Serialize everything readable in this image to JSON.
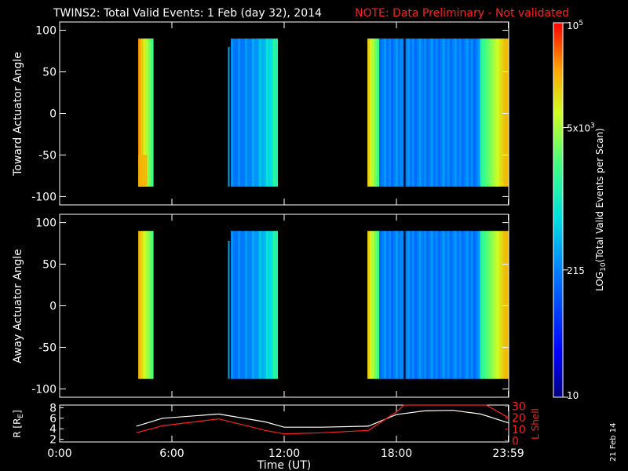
{
  "title": {
    "main": "TWINS2: Total Valid Events:  1 Feb (day  32), 2014",
    "note": "NOTE: Data Preliminary - Not validated",
    "note_color": "#ff2020"
  },
  "date_stamp": "21 Feb 14",
  "chart_data": [
    {
      "type": "heatmap",
      "panel": "toward",
      "ylabel": "Toward Actuator Angle",
      "ylim": [
        -110,
        110
      ],
      "yticks": [
        "100",
        "50",
        "0",
        "-50",
        "-100"
      ],
      "yvals": [
        100,
        50,
        0,
        -50,
        -100
      ],
      "xlim": [
        0,
        24
      ],
      "angle_range": [
        -88,
        90
      ],
      "blocks": [
        {
          "start_h": 4.2,
          "end_h": 5.0,
          "level": 0.68,
          "edge_level": 0.88
        },
        {
          "start_h": 9.15,
          "end_h": 11.65,
          "level": 0.32,
          "edge_level": 0.55
        },
        {
          "start_h": 16.45,
          "end_h": 23.98,
          "level": 0.3,
          "edge_level": 0.85
        }
      ]
    },
    {
      "type": "heatmap",
      "panel": "away",
      "ylabel": "Away Actuator Angle",
      "ylim": [
        -110,
        110
      ],
      "yticks": [
        "100",
        "50",
        "0",
        "-50",
        "-100"
      ],
      "yvals": [
        100,
        50,
        0,
        -50,
        -100
      ],
      "xlim": [
        0,
        24
      ],
      "angle_range": [
        -88,
        90
      ],
      "blocks": [
        {
          "start_h": 4.2,
          "end_h": 5.0,
          "level": 0.7,
          "edge_level": 0.85
        },
        {
          "start_h": 9.15,
          "end_h": 11.65,
          "level": 0.32,
          "edge_level": 0.55
        },
        {
          "start_h": 16.45,
          "end_h": 23.98,
          "level": 0.3,
          "edge_level": 0.85
        }
      ]
    },
    {
      "type": "line",
      "panel": "orbit",
      "ylabel_left": "R [R",
      "ylabel_left_sub": "E",
      "ylabel_left_end": "]",
      "ylabel_right": "L Shell",
      "yticks_left": [
        "8",
        "6",
        "4",
        "2"
      ],
      "yvals_left": [
        8,
        6,
        4,
        2
      ],
      "ylim_left": [
        1.5,
        8.5
      ],
      "yticks_right": [
        "30",
        "20",
        "10",
        "0"
      ],
      "yvals_right": [
        30,
        20,
        10,
        0
      ],
      "ylim_right": [
        -1,
        31
      ],
      "xlim": [
        0,
        24
      ],
      "series": [
        {
          "name": "R",
          "axis": "left",
          "color": "#ffffff",
          "x": [
            4.1,
            5.5,
            8.5,
            11.0,
            12.0,
            14.0,
            16.5,
            18.0,
            19.5,
            21.0,
            22.5,
            24.0
          ],
          "y": [
            4.5,
            6.0,
            6.8,
            5.3,
            4.3,
            4.3,
            4.5,
            6.7,
            7.4,
            7.5,
            6.8,
            5.1
          ]
        },
        {
          "name": "L",
          "axis": "right",
          "color": "#ff2020",
          "x": [
            4.1,
            5.5,
            8.5,
            11.0,
            12.0,
            14.0,
            16.5,
            18.0,
            18.4,
            22.8,
            24.0
          ],
          "y": [
            7,
            13,
            19,
            9,
            6,
            7,
            9,
            25,
            31,
            31,
            20
          ]
        }
      ]
    }
  ],
  "x_axis": {
    "label": "Time (UT)",
    "ticks": [
      "0:00",
      "6:00",
      "12:00",
      "18:00",
      "23:59"
    ],
    "tick_hours": [
      0,
      6,
      12,
      18,
      23.98
    ]
  },
  "colorbar": {
    "label_main": "LOG",
    "label_sub": "10",
    "label_rest": "(Total Valid Events per Scan)",
    "ticks": [
      {
        "base": "10",
        "exp": "5",
        "level": 1.0
      },
      {
        "base": "5x10",
        "exp": "3",
        "level": 0.72
      },
      {
        "base": "215",
        "exp": "",
        "level": 0.34
      },
      {
        "base": "10",
        "exp": "",
        "level": 0.0
      }
    ]
  }
}
